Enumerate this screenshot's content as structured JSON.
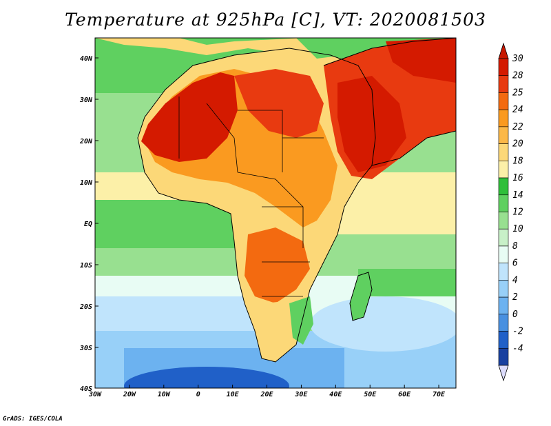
{
  "title": "Temperature at 925hPa [C], VT: 2020081503",
  "credit": "GrADS: IGES/COLA",
  "axes": {
    "x_ticks": [
      "30W",
      "20W",
      "10W",
      "0",
      "10E",
      "20E",
      "30E",
      "40E",
      "50E",
      "60E",
      "70E"
    ],
    "y_ticks": [
      "40N",
      "30N",
      "20N",
      "10N",
      "EQ",
      "10S",
      "20S",
      "30S",
      "40S"
    ]
  },
  "colorbar": {
    "labels": [
      "30",
      "28",
      "25",
      "24",
      "22",
      "20",
      "18",
      "16",
      "14",
      "12",
      "10",
      "8",
      "6",
      "4",
      "2",
      "0",
      "-2",
      "-4"
    ],
    "colors": [
      "#d41a00",
      "#e83a10",
      "#f36a10",
      "#fa9a20",
      "#fbb848",
      "#fcd878",
      "#fcf0a8",
      "#2fbf3a",
      "#5fd060",
      "#98e090",
      "#c8f0c8",
      "#e8fcf4",
      "#c0e4fc",
      "#98d0f8",
      "#6cb2f0",
      "#4890e0",
      "#2060c8",
      "#1840a0"
    ],
    "over_color": "#c81800",
    "under_color": "#dcdcfc"
  },
  "palette": {
    "hot": "#d41a00",
    "warm": "#f36a10",
    "orange": "#fa9a20",
    "yellow": "#fcd878",
    "cream": "#fcf0a8",
    "green": "#2fbf3a",
    "lightgreen": "#98e090",
    "paleaqua": "#e8fcf4",
    "blue": "#6cb2f0",
    "deepblue": "#2060c8"
  }
}
